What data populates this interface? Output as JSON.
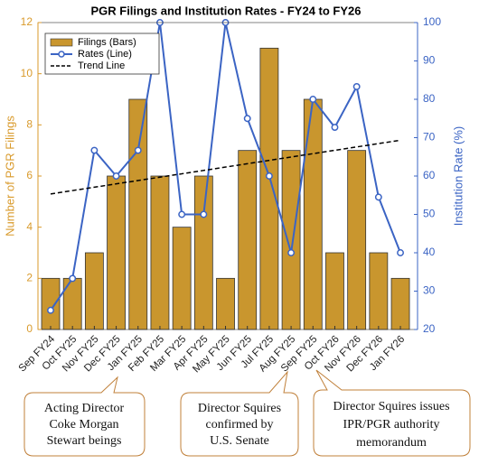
{
  "chart_data": {
    "type": "bar",
    "title": "PGR Filings and Institution Rates - FY24 to FY26",
    "y_label": "Number of PGR Filings",
    "y2_label": "Institution Rate (%)",
    "categories": [
      "Sep FY24",
      "Oct FY25",
      "Nov FY25",
      "Dec FY25",
      "Jan FY25",
      "Feb FY25",
      "Mar FY25",
      "Apr FY25",
      "May FY25",
      "Jun FY25",
      "Jul FY25",
      "Aug FY25",
      "Sep FY25",
      "Oct FY26",
      "Nov FY26",
      "Dec FY26",
      "Jan FY26"
    ],
    "series": [
      {
        "name": "Filings (Bars)",
        "color": "#c9962e",
        "values": [
          2,
          2,
          3,
          6,
          9,
          6,
          4,
          6,
          2,
          7,
          11,
          7,
          9,
          3,
          7,
          3,
          2
        ]
      },
      {
        "name": "Rates (Line)",
        "color": "#3b64c4",
        "axis": "y2",
        "values": [
          25,
          33.3,
          66.7,
          60,
          66.7,
          100,
          50,
          50,
          100,
          75,
          60,
          40,
          80,
          72.7,
          83.3,
          54.5,
          40
        ]
      }
    ],
    "trend_line": {
      "name": "Trend Line",
      "color": "#000000",
      "start": 5.3,
      "end": 7.4
    },
    "ylim": [
      0,
      12
    ],
    "yticks": [
      0,
      2,
      4,
      6,
      8,
      10,
      12
    ],
    "y2lim": [
      20,
      100
    ],
    "y2ticks": [
      20,
      30,
      40,
      50,
      60,
      70,
      80,
      90,
      100
    ],
    "grid": false,
    "legend": "upper left",
    "annotations": [
      {
        "lines": [
          "Acting Director",
          "Coke Morgan",
          "Stewart beings"
        ]
      },
      {
        "lines": [
          "Director Squires",
          "confirmed by",
          "U.S. Senate"
        ]
      },
      {
        "lines": [
          "Director Squires issues",
          "IPR/PGR authority",
          "memorandum"
        ]
      }
    ]
  }
}
